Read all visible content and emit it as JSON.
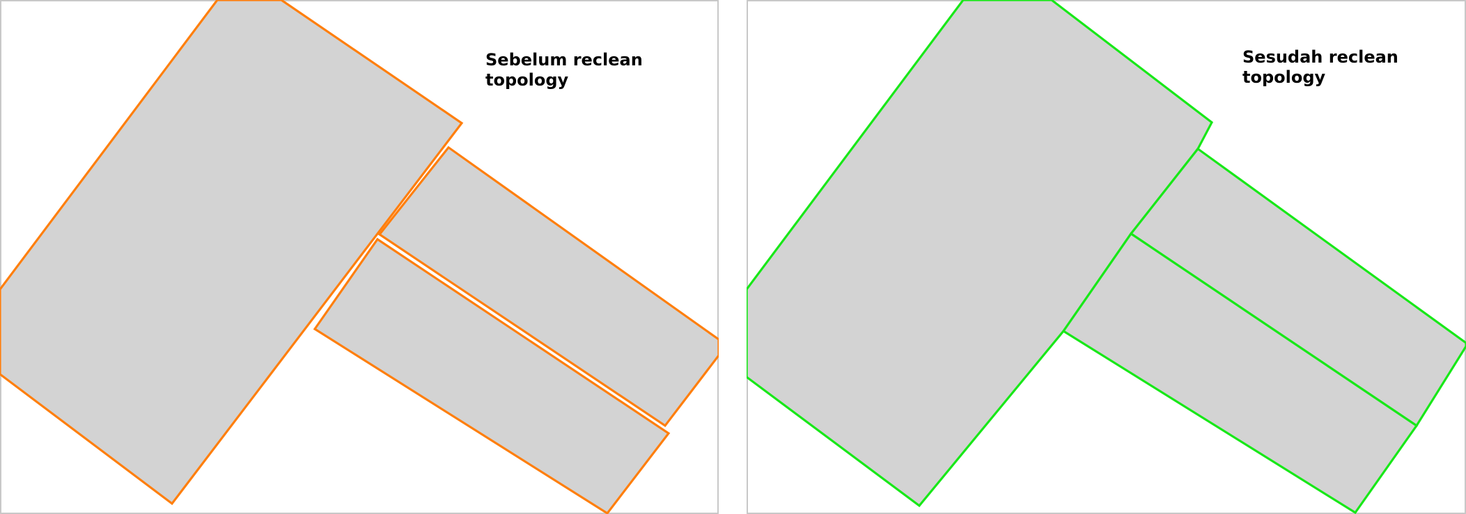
{
  "panels": [
    {
      "id": "before",
      "caption": "Sebelum reclean\ntopology",
      "outline_color": "#ff7f0e",
      "fill_color": "#d3d3d3"
    },
    {
      "id": "after",
      "caption": "Sesudah reclean\ntopology",
      "outline_color": "#18e818",
      "fill_color": "#d3d3d3"
    }
  ]
}
